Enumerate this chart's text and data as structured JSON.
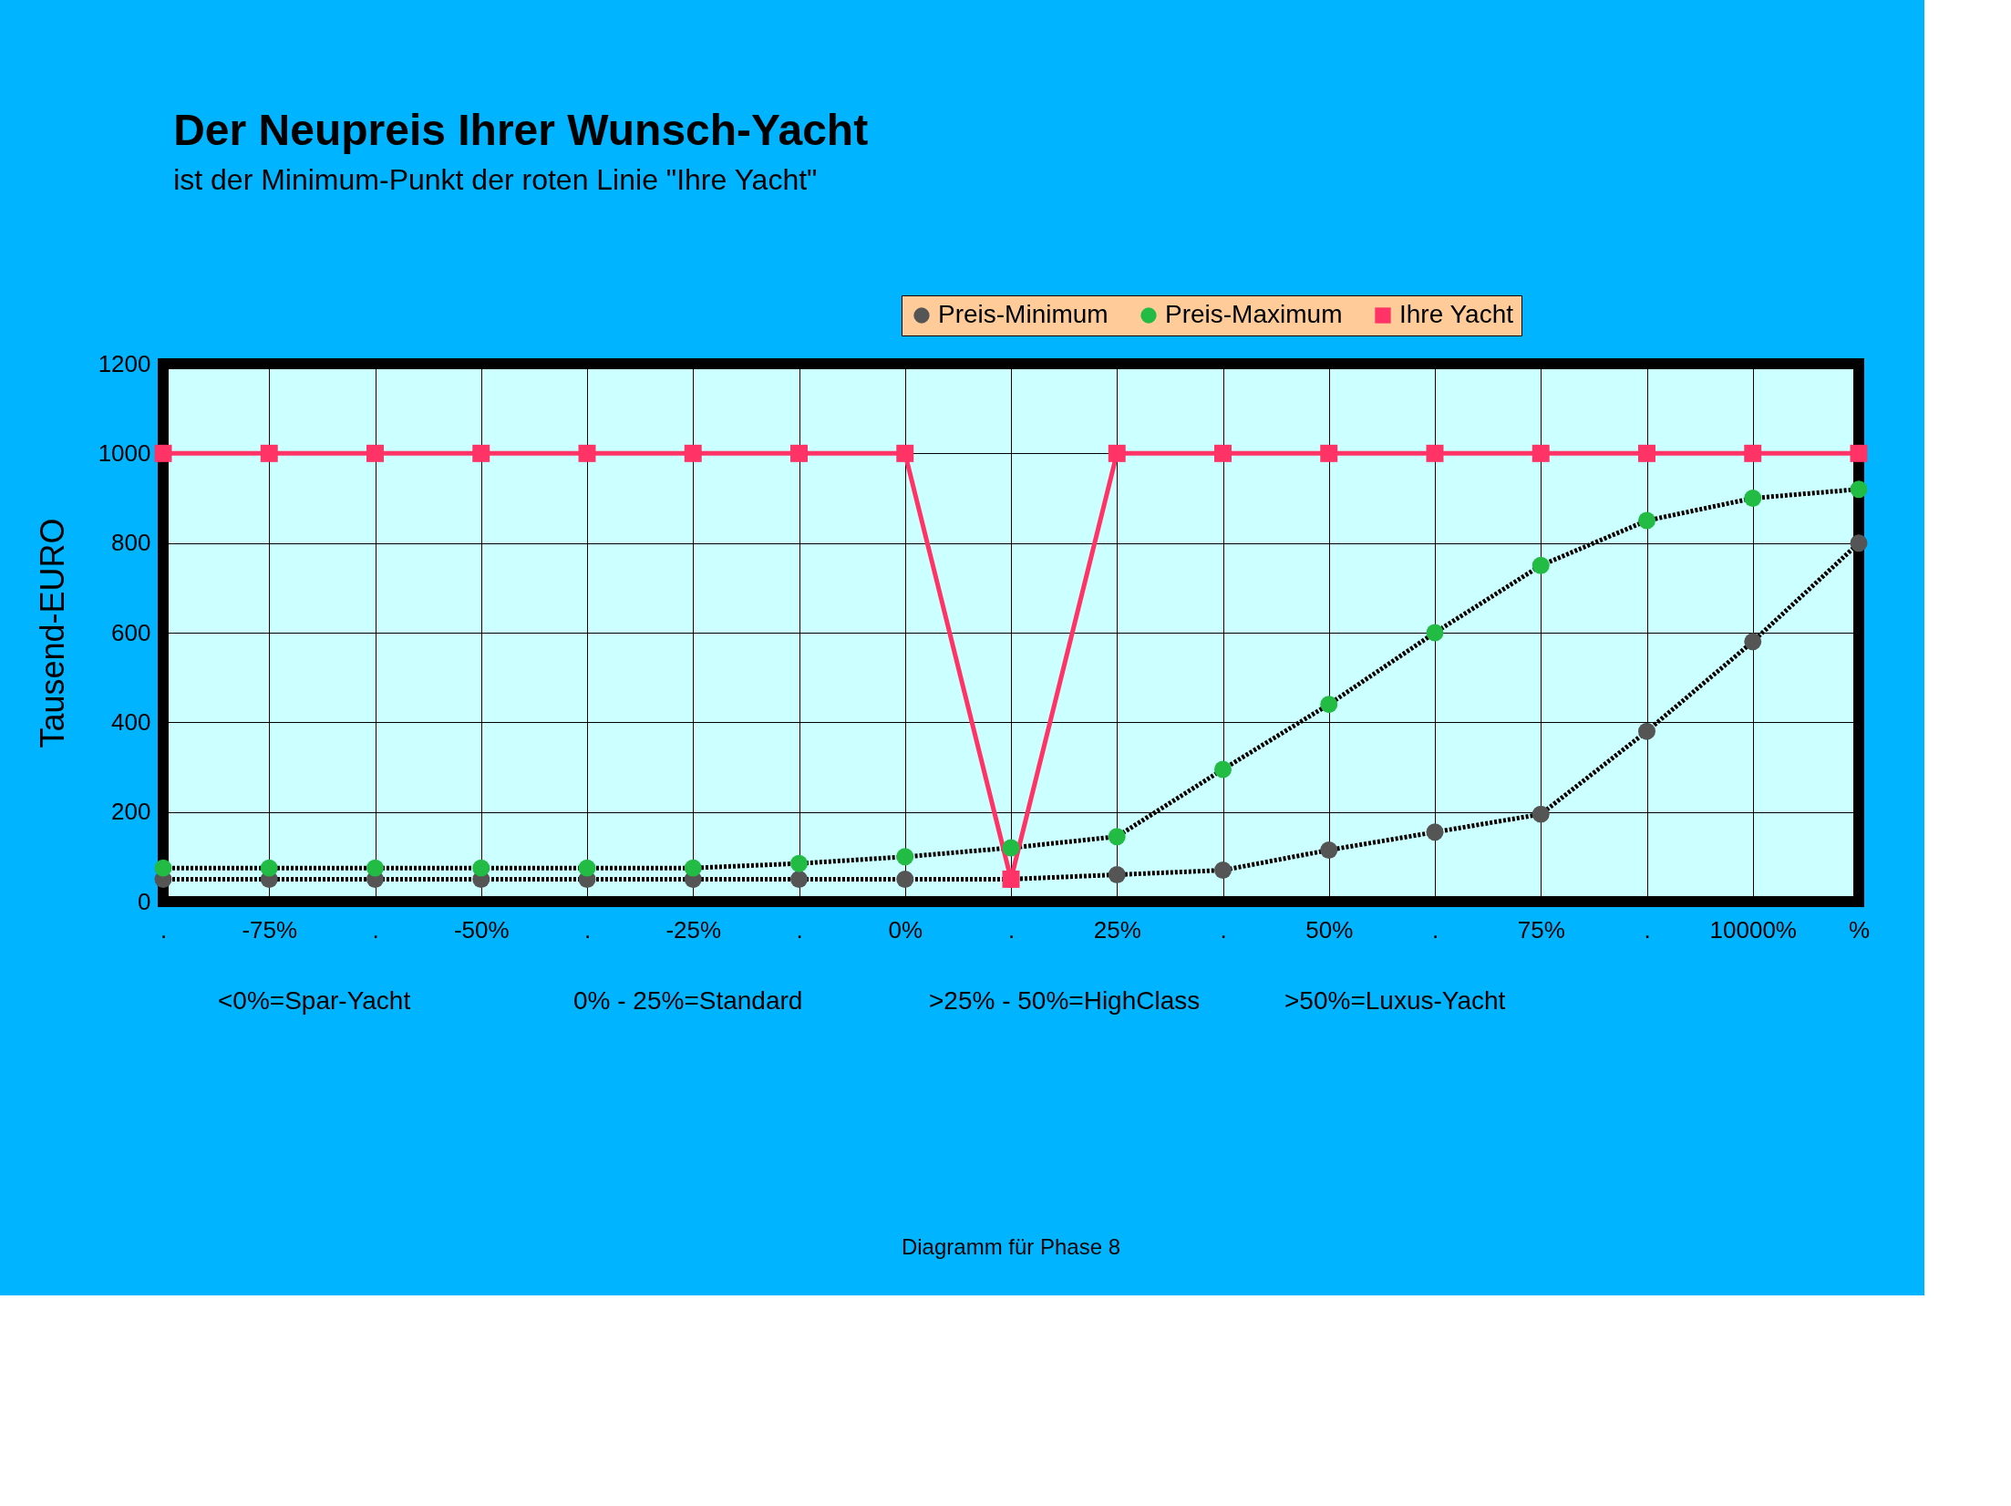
{
  "chart_data": {
    "type": "line",
    "title": "Der Neupreis Ihrer Wunsch-Yacht",
    "subtitle": "ist der Minimum-Punkt der roten Linie \"Ihre Yacht\"",
    "ylabel": "Tausend-EURO",
    "categories": [
      ".",
      "-75%",
      ".",
      "-50%",
      ".",
      "-25%",
      ".",
      "0%",
      ".",
      "25%",
      ".",
      "50%",
      ".",
      "75%",
      ".",
      "10000%",
      "%"
    ],
    "series": [
      {
        "name": "Preis-Minimum",
        "color": "#555555",
        "marker": "circle",
        "line_style": "dotted",
        "values": [
          50,
          50,
          50,
          50,
          50,
          50,
          50,
          50,
          50,
          60,
          70,
          115,
          155,
          195,
          380,
          580,
          800
        ]
      },
      {
        "name": "Preis-Maximum",
        "color": "#22bb44",
        "marker": "circle",
        "line_style": "dotted",
        "values": [
          75,
          75,
          75,
          75,
          75,
          75,
          85,
          100,
          120,
          145,
          295,
          440,
          600,
          750,
          850,
          900,
          920
        ]
      },
      {
        "name": "Ihre Yacht",
        "color": "#ff3366",
        "marker": "square",
        "line_style": "solid",
        "values": [
          1000,
          1000,
          1000,
          1000,
          1000,
          1000,
          1000,
          1000,
          50,
          1000,
          1000,
          1000,
          1000,
          1000,
          1000,
          1000,
          1000
        ]
      }
    ],
    "ylim": [
      0,
      1200
    ],
    "yticks": [
      0,
      200,
      400,
      600,
      800,
      1000,
      1200
    ],
    "grid": true,
    "legend": "top right",
    "annotations": [
      "<0%=Spar-Yacht",
      "0% - 25%=Standard",
      ">25% - 50%=HighClass",
      ">50%=Luxus-Yacht",
      "Diagramm für Phase 8"
    ]
  }
}
